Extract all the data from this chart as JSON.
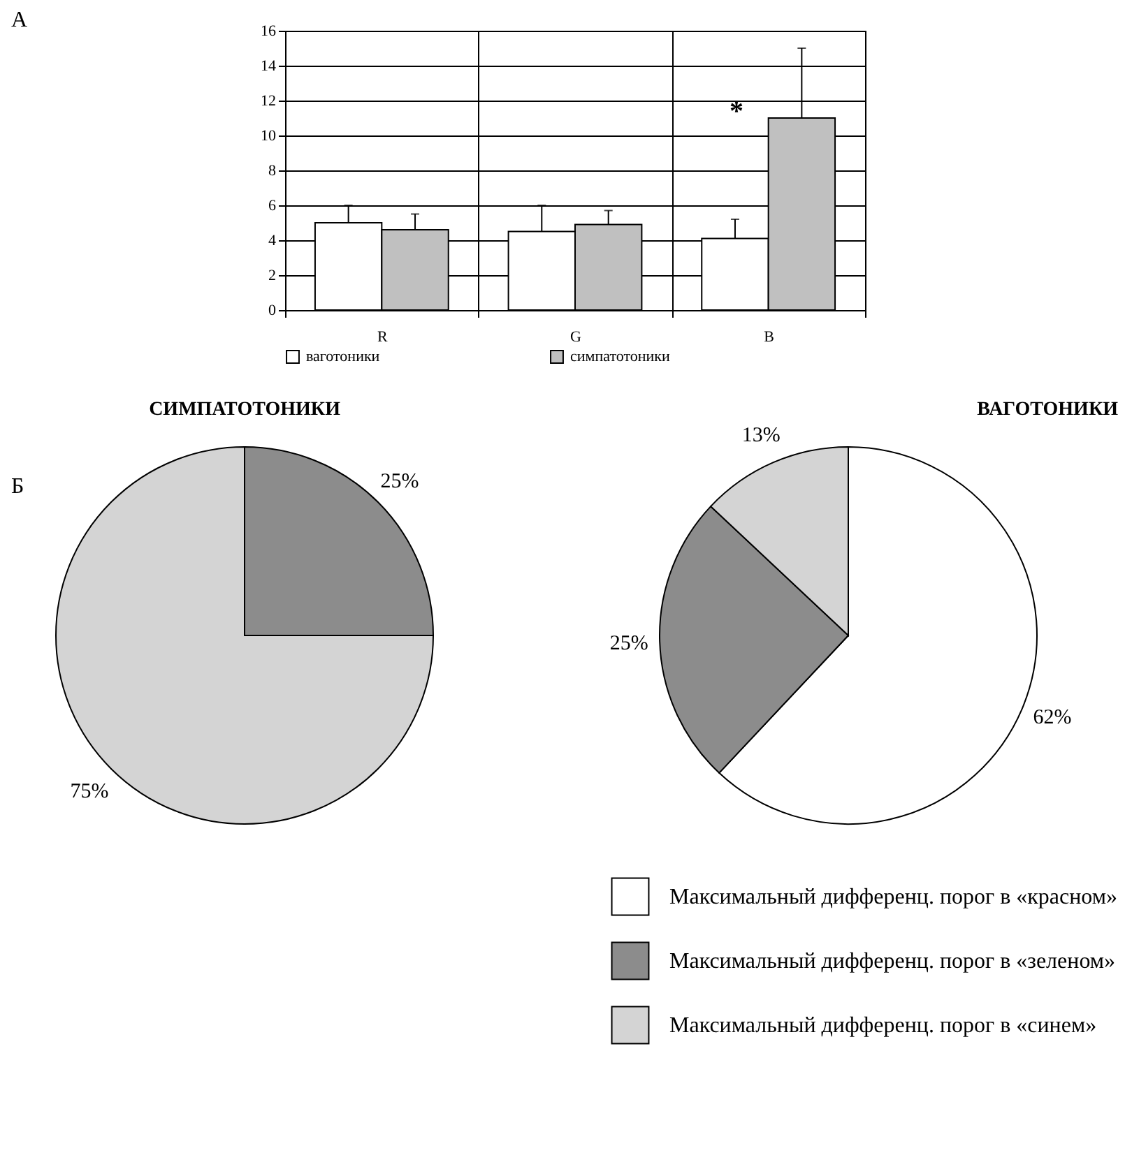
{
  "chart_data": [
    {
      "type": "bar",
      "categories": [
        "R",
        "G",
        "B"
      ],
      "series": [
        {
          "name": "ваготоники",
          "color": "#ffffff",
          "values": [
            5.0,
            4.5,
            4.1
          ],
          "errors": [
            [
              5.0,
              6.0
            ],
            [
              4.5,
              6.0
            ],
            [
              4.1,
              5.2
            ]
          ]
        },
        {
          "name": "симпатотоники",
          "color": "#c0c0c0",
          "values": [
            4.6,
            4.9,
            11.0
          ],
          "errors": [
            [
              4.6,
              5.5
            ],
            [
              4.9,
              5.7
            ],
            [
              11.0,
              15.0
            ]
          ]
        }
      ],
      "ylim": [
        0,
        16
      ],
      "yticks": [
        0,
        2,
        4,
        6,
        8,
        10,
        12,
        14,
        16
      ],
      "grid": true,
      "legend": "bottom",
      "annotations": [
        "*",
        "А"
      ]
    },
    {
      "type": "pie",
      "title": "СИМПАТОТОНИКИ",
      "categories": [
        null,
        null
      ],
      "values": [
        25,
        75
      ],
      "colors": [
        "#8c8c8c",
        "#d4d4d4"
      ],
      "value_labels": [
        "25%",
        "75%"
      ],
      "annotations": [
        "Б"
      ]
    },
    {
      "type": "pie",
      "title": "ВАГОТОНИКИ",
      "categories": [
        "Максимальный дифференц. порог в «красном»",
        "Максимальный дифференц. порог в «зеленом»",
        "Максимальный дифференц. порог в «синем»"
      ],
      "values": [
        62,
        25,
        13
      ],
      "colors": [
        "#ffffff",
        "#8c8c8c",
        "#d4d4d4"
      ],
      "value_labels": [
        "62%",
        "25%",
        "13%"
      ],
      "legend": "bottom"
    }
  ]
}
